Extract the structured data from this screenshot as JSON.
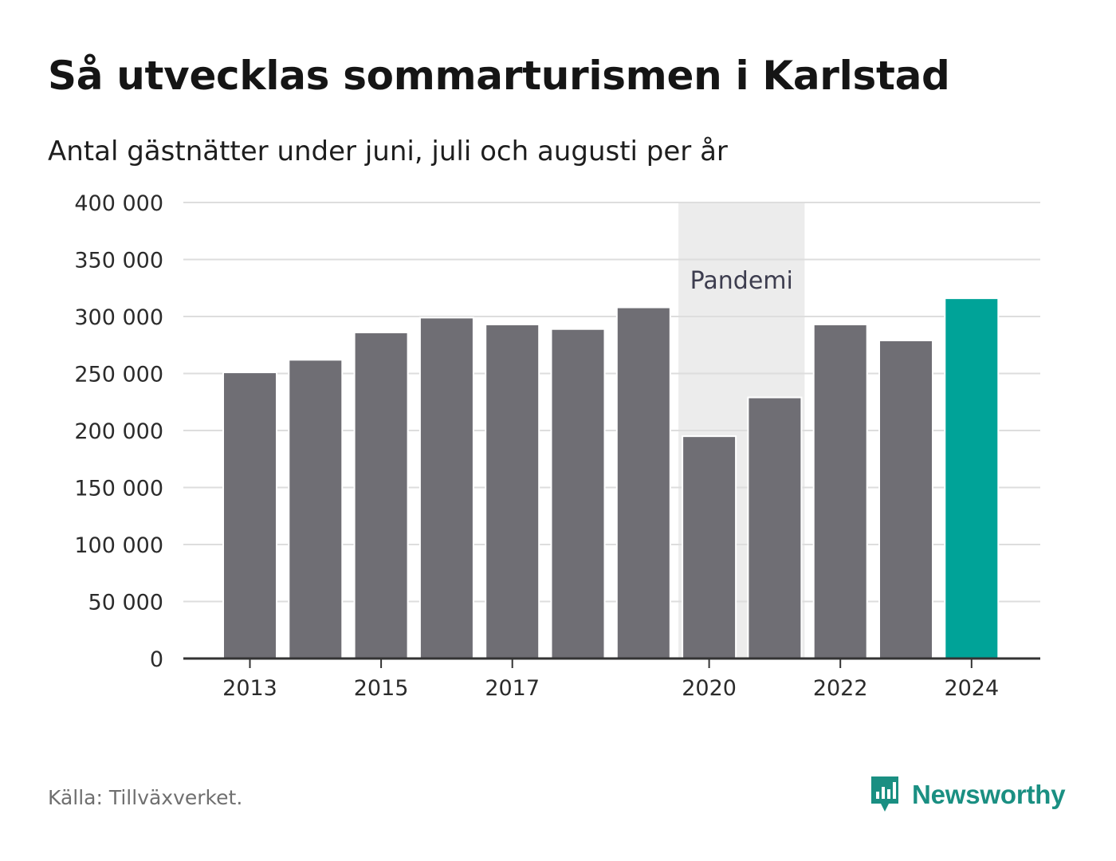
{
  "title": "Så utvecklas sommarturismen i Karlstad",
  "subtitle": "Antal gästnätter under juni, juli och augusti per år",
  "source": "Källa: Tillväxverket.",
  "brand": {
    "name": "Newsworthy",
    "icon": "newsworthy-logo-icon",
    "color": "#1a8f82"
  },
  "colors": {
    "bar": "#6f6e74",
    "highlight": "#00a398",
    "band": "#ececec",
    "grid": "#dddddd",
    "axis": "#333333"
  },
  "chart_data": {
    "type": "bar",
    "categories": [
      "2013",
      "2014",
      "2015",
      "2016",
      "2017",
      "2018",
      "2019",
      "2020",
      "2021",
      "2022",
      "2023",
      "2024"
    ],
    "values": [
      251000,
      262000,
      286000,
      299000,
      293000,
      289000,
      308000,
      195000,
      229000,
      293000,
      279000,
      316000
    ],
    "highlight_category": "2024",
    "x_tick_labels": [
      "2013",
      "2015",
      "2017",
      "2020",
      "2022",
      "2024"
    ],
    "ylim": [
      0,
      400000
    ],
    "y_ticks": [
      0,
      50000,
      100000,
      150000,
      200000,
      250000,
      300000,
      350000,
      400000
    ],
    "y_tick_labels": [
      "0",
      "50 000",
      "100 000",
      "150 000",
      "200 000",
      "250 000",
      "300 000",
      "350 000",
      "400 000"
    ],
    "annotation": {
      "label": "Pandemi",
      "from": "2020",
      "to": "2021"
    },
    "xlabel": "",
    "ylabel": "",
    "grid": true,
    "legend": "none"
  }
}
